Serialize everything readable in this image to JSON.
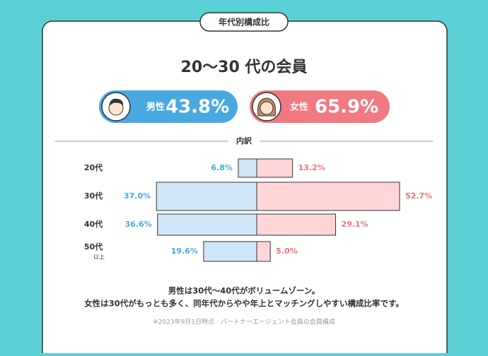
{
  "chart_data": {
    "type": "butterfly",
    "tab": "年代別構成比",
    "title": "20〜30 代の会員",
    "summary": [
      {
        "name": "男性",
        "value": 43.8,
        "label": "43.8%",
        "color": "#4aa8e0"
      },
      {
        "name": "女性",
        "value": 65.9,
        "label": "65.9%",
        "color": "#f17a80"
      }
    ],
    "breakdown_label": "内訳",
    "categories": [
      "20代",
      "30代",
      "40代",
      "50代"
    ],
    "category_sublabels": [
      null,
      null,
      null,
      "以上"
    ],
    "xlim": [
      0,
      60
    ],
    "series": [
      {
        "name": "男性",
        "color": "#cfe6f8",
        "label_color": "#4aa8e0",
        "values": [
          6.8,
          37.0,
          36.6,
          19.6
        ],
        "value_labels": [
          "6.8%",
          "37.0%",
          "36.6%",
          "19.6%"
        ]
      },
      {
        "name": "女性",
        "color": "#ffd5d8",
        "label_color": "#f0727a",
        "values": [
          13.2,
          52.7,
          29.1,
          5.0
        ],
        "value_labels": [
          "13.2%",
          "52.7%",
          "29.1%",
          "5.0%"
        ]
      }
    ],
    "notes": [
      "男性は30代〜40代がボリュームゾーン。",
      "女性は30代がもっとも多く、同年代からやや年上とマッチングしやすい構成比率です。"
    ],
    "source": "※2023年9月1日時点　パートナーエージェント会員の会員構成"
  }
}
